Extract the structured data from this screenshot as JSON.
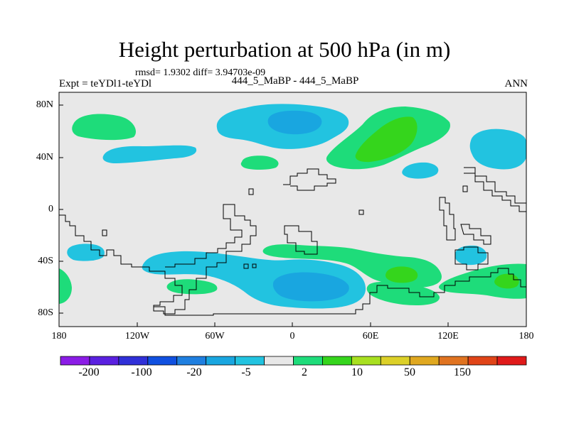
{
  "header": {
    "title": "Height perturbation at 500 hPa (in m)",
    "rmsd_line": "rmsd= 1.9302 diff= 3.94703e-09",
    "experiment": "Expt = teYDl1-teYDl",
    "case_label": "444_5_MaBP - 444_5_MaBP",
    "season": "ANN"
  },
  "axes": {
    "lat_ticks": [
      "80N",
      "40N",
      "0",
      "40S",
      "80S"
    ],
    "lon_ticks": [
      "180",
      "120W",
      "60W",
      "0",
      "60E",
      "120E",
      "180"
    ]
  },
  "colorbar": {
    "colors": [
      "#8b1ce6",
      "#5a20e0",
      "#3030d8",
      "#1050e0",
      "#1f7fe0",
      "#19a6e0",
      "#22c3e0",
      "#e8e8e8",
      "#1edc7a",
      "#35d51c",
      "#a8e020",
      "#dcd028",
      "#e0a820",
      "#e07320",
      "#e04418",
      "#e01a1a"
    ],
    "labels": [
      "-200",
      "-100",
      "-20",
      "-5",
      "2",
      "10",
      "50",
      "150"
    ]
  },
  "map": {
    "background": "#e8e8e8",
    "level_colors": {
      "neg_light": "#22c3e0",
      "neg_mid": "#19a6e0",
      "pos_light": "#1edc7a",
      "pos_mid": "#35d51c"
    }
  }
}
